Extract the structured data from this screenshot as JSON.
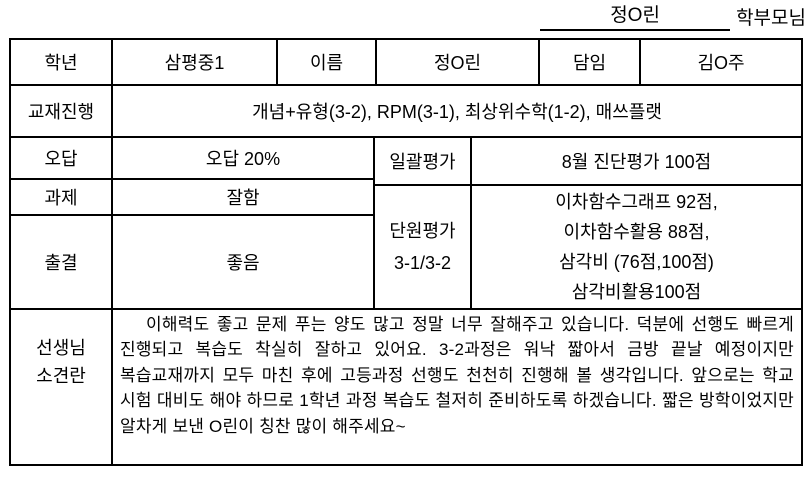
{
  "colors": {
    "border": "#000000",
    "text": "#000000",
    "background": "#ffffff"
  },
  "signature": {
    "name": "정O린",
    "suffix": "학부모님"
  },
  "table": {
    "row1": {
      "grade_label": "학년",
      "grade_value": "삼평중1",
      "name_label": "이름",
      "name_value": "정O린",
      "homeroom_label": "담임",
      "homeroom_value": "김O주"
    },
    "row2": {
      "textbook_label": "교재진행",
      "textbook_value": "개념+유형(3-2), RPM(3-1), 최상위수학(1-2), 매쓰플랫"
    },
    "left": {
      "wrong_label": "오답",
      "wrong_value": "오답 20%",
      "homework_label": "과제",
      "homework_value": "잘함",
      "attendance_label": "출결",
      "attendance_value": "좋음"
    },
    "right": {
      "batch_label": "일괄평가",
      "batch_value": "8월 진단평가 100점",
      "unit_label_line1": "단원평가",
      "unit_label_line2": "3-1/3-2",
      "unit_scores": [
        "이차함수그래프 92점,",
        "이차함수활용 88점,",
        "삼각비 (76점,100점)",
        "삼각비활용100점"
      ]
    },
    "comment": {
      "label_line1": "선생님",
      "label_line2": "소견란",
      "text": "이해력도 좋고 문제 푸는 양도 많고 정말 너무 잘해주고 있습니다. 덕분에 선행도 빠르게 진행되고 복습도 착실히 잘하고 있어요. 3-2과정은 워낙 짧아서 금방 끝날 예정이지만 복습교재까지 모두 마친 후에 고등과정 선행도 천천히 진행해 볼 생각입니다. 앞으로는 학교 시험 대비도 해야 하므로 1학년 과정 복습도 철저히 준비하도록 하겠습니다. 짧은 방학이었지만 알차게 보낸 O린이 칭찬 많이 해주세요~"
    }
  }
}
